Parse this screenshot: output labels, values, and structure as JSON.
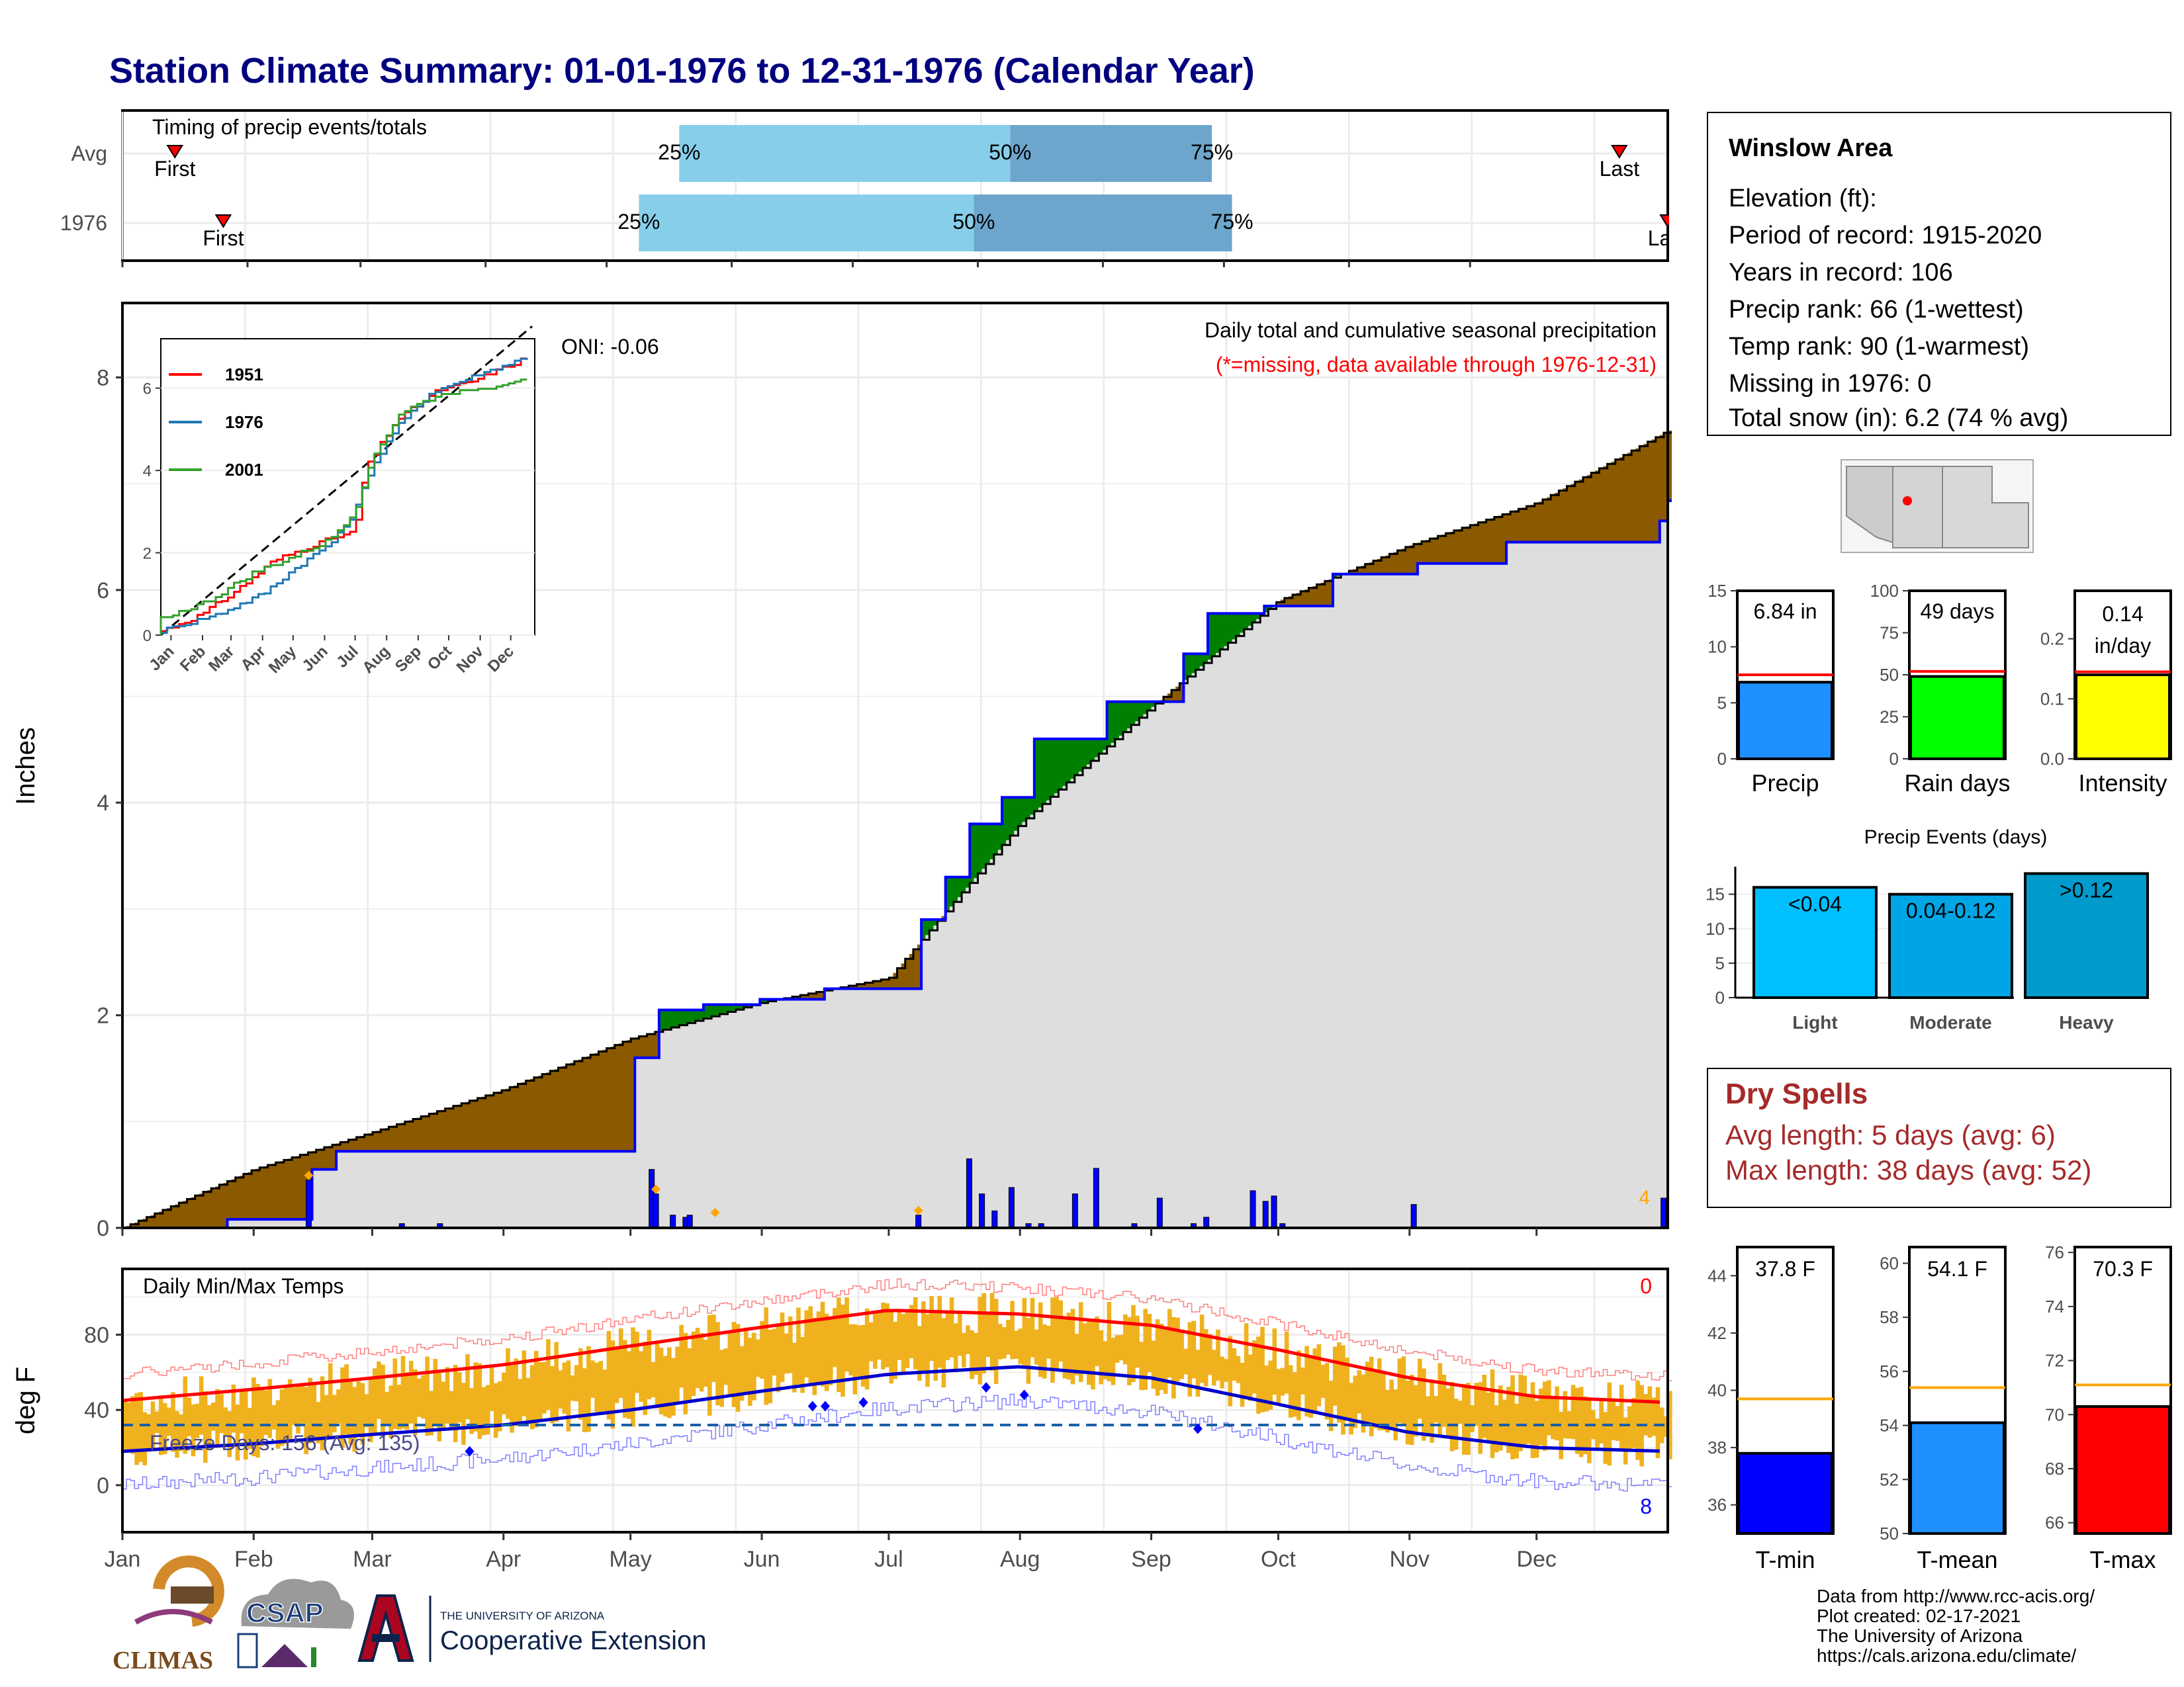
{
  "title": "Station Climate Summary: 01-01-1976 to 12-31-1976 (Calendar Year)",
  "colors": {
    "title": "#000080",
    "cum_fill_above": "#8B5A00",
    "cum_fill_below": "#008000",
    "cum_area": "#dedede",
    "year_line": "#0000ff",
    "q_light": "#87CEEB",
    "q_dark": "#6CA6CD",
    "temp_bar": "#EFB21E",
    "tmax_mean": "#ff0000",
    "tmin_mean": "#0000cc",
    "precip_bar": "#1E90FF",
    "rain_bar": "#00ff00",
    "intensity_bar": "#ffff00",
    "light": "#00BFFF",
    "moderate": "#00A5E5",
    "heavy": "#009ACD",
    "tmin_bar": "#0000ff",
    "tmean_bar": "#1E90FF",
    "tmax_bar": "#ff0000",
    "dry_text": "#A52A2A"
  },
  "timing_panel": {
    "heading": "Timing of precip events/totals",
    "row_labels": [
      "Avg",
      "1976"
    ],
    "avg": {
      "first_label": "First",
      "last_label": "Last",
      "p25": "25%",
      "p50": "50%",
      "p75": "75%",
      "first_day": 13,
      "q25_day": 138,
      "q50_day": 220,
      "q75_day": 270,
      "last_day": 371
    },
    "year": {
      "first_label": "First",
      "last_label": "Last",
      "p25": "25%",
      "p50": "50%",
      "p75": "75%",
      "first_day": 25,
      "q25_day": 128,
      "q50_day": 211,
      "q75_day": 275,
      "last_day": 383
    }
  },
  "precip_panel": {
    "ylabel": "Inches",
    "subtitle": "Daily total and cumulative seasonal precipitation",
    "missing_note": "(*=missing, data available through 1976-12-31)",
    "oni": "ONI: -0.06",
    "right_count": "4",
    "yticks": [
      "0",
      "2",
      "4",
      "6",
      "8"
    ]
  },
  "inset": {
    "legend": [
      "1951",
      "1976",
      "2001"
    ],
    "legend_colors": [
      "#ff0000",
      "#1f77b4",
      "#33a02c"
    ],
    "yticks": [
      "0",
      "2",
      "4",
      "6"
    ],
    "months": [
      "Jan",
      "Feb",
      "Mar",
      "Apr",
      "May",
      "Jun",
      "Jul",
      "Aug",
      "Sep",
      "Oct",
      "Nov",
      "Dec"
    ]
  },
  "temp_panel": {
    "ylabel": "deg F",
    "heading": "Daily Min/Max Temps",
    "freeze_label": "Freeze Days: 156 (Avg: 135)",
    "top_right_count": "0",
    "bottom_right_count": "8",
    "yticks": [
      "0",
      "40",
      "80"
    ]
  },
  "x_months": [
    "Jan",
    "Feb",
    "Mar",
    "Apr",
    "May",
    "Jun",
    "Jul",
    "Aug",
    "Sep",
    "Oct",
    "Nov",
    "Dec"
  ],
  "info_box": {
    "name": "Winslow Area",
    "lines": [
      "Elevation (ft):",
      "Period of record: 1915-2020",
      "Years in record: 106",
      "Precip rank: 66 (1-wettest)",
      "Temp rank: 90 (1-warmest)",
      "Missing in 1976: 0",
      "Total snow (in): 6.2 (74 % avg)"
    ]
  },
  "mini_bars": [
    {
      "label": "Precip",
      "value_text": "6.84 in",
      "value": 6.84,
      "avg": 7.5,
      "ymax": 15,
      "ticks": [
        "0",
        "5",
        "10",
        "15"
      ]
    },
    {
      "label": "Rain days",
      "value_text": "49 days",
      "value": 49,
      "avg": 52,
      "ymax": 100,
      "ticks": [
        "0",
        "25",
        "50",
        "75",
        "100"
      ]
    },
    {
      "label": "Intensity",
      "value_text": "0.14 in/day",
      "value": 0.14,
      "avg": 0.145,
      "ymax": 0.28,
      "ticks": [
        "0.0",
        "0.1",
        "0.2"
      ]
    }
  ],
  "events": {
    "title": "Precip Events (days)",
    "ticks": [
      "0",
      "5",
      "10",
      "15"
    ],
    "bars": [
      {
        "label": "Light",
        "text": "<0.04",
        "value": 16
      },
      {
        "label": "Moderate",
        "text": "0.04-0.12",
        "value": 15
      },
      {
        "label": "Heavy",
        "text": ">0.12",
        "value": 18
      }
    ]
  },
  "dry_spells": {
    "title": "Dry Spells",
    "avg_length": "Avg length: 5 days (avg: 6)",
    "max_length": "Max length: 38 days (avg: 52)"
  },
  "temp_bars": [
    {
      "label": "T-min",
      "value_text": "37.8 F",
      "value": 37.8,
      "avg": 39.7,
      "ymin": 35,
      "ymax": 45,
      "ticks": [
        "36",
        "38",
        "40",
        "42",
        "44"
      ]
    },
    {
      "label": "T-mean",
      "value_text": "54.1 F",
      "value": 54.1,
      "avg": 55.4,
      "ymin": 50,
      "ymax": 60.6,
      "ticks": [
        "50",
        "52",
        "54",
        "56",
        "58",
        "60"
      ]
    },
    {
      "label": "T-max",
      "value_text": "70.3 F",
      "value": 70.3,
      "avg": 71.1,
      "ymin": 65.6,
      "ymax": 76.2,
      "ticks": [
        "66",
        "68",
        "70",
        "72",
        "74",
        "76"
      ]
    }
  ],
  "footer": {
    "lines": [
      "Data from http://www.rcc-acis.org/",
      "Plot created: 02-17-2021",
      "The University of Arizona",
      "https://cals.arizona.edu/climate/"
    ],
    "climas": "CLIMAS",
    "csap": "CSAP",
    "ua_small": "THE UNIVERSITY OF ARIZONA",
    "ua_big": "Cooperative Extension"
  },
  "chart_data": [
    {
      "type": "area",
      "title": "Daily total and cumulative seasonal precipitation",
      "ylabel": "Inches",
      "ylim": [
        0,
        8.2
      ],
      "x_units": "day of year",
      "series": [
        {
          "name": "average cumulative",
          "x": [
            0,
            31,
            59,
            90,
            120,
            151,
            181,
            212,
            243,
            273,
            304,
            334,
            365
          ],
          "values": [
            0,
            0.55,
            0.9,
            1.3,
            1.78,
            2.12,
            2.35,
            3.8,
            4.9,
            5.9,
            6.42,
            6.82,
            7.5
          ]
        },
        {
          "name": "1976 cumulative",
          "x": [
            0,
            24,
            44,
            50,
            66,
            96,
            121,
            126,
            137,
            150,
            165,
            188,
            194,
            200,
            207,
            215,
            232,
            250,
            256,
            269,
            285,
            305,
            326,
            363,
            365
          ],
          "values": [
            0,
            0.08,
            0.55,
            0.72,
            0.72,
            0.72,
            1.6,
            2.05,
            2.1,
            2.15,
            2.25,
            2.9,
            3.3,
            3.8,
            4.05,
            4.6,
            4.95,
            5.4,
            5.78,
            5.85,
            6.15,
            6.25,
            6.45,
            6.65,
            6.84
          ]
        }
      ],
      "daily_1976": {
        "days": [
          44,
          66,
          75,
          125,
          126,
          130,
          133,
          134,
          188,
          200,
          203,
          206,
          210,
          214,
          217,
          225,
          230,
          239,
          245,
          253,
          256,
          267,
          270,
          272,
          274,
          305,
          364
        ],
        "inches": [
          0.45,
          0.04,
          0.04,
          0.55,
          0.32,
          0.12,
          0.1,
          0.12,
          0.12,
          0.65,
          0.32,
          0.16,
          0.38,
          0.04,
          0.04,
          0.32,
          0.56,
          0.04,
          0.28,
          0.04,
          0.1,
          0.35,
          0.25,
          0.3,
          0.04,
          0.22,
          0.28
        ]
      },
      "inset": {
        "series": [
          "1951",
          "1976",
          "2001"
        ],
        "ylim": [
          0,
          7
        ]
      }
    },
    {
      "type": "line",
      "title": "Daily Min/Max Temps",
      "ylabel": "deg F",
      "ylim": [
        -20,
        110
      ],
      "x_units": "day of year",
      "series": [
        {
          "name": "normal max",
          "x": [
            0,
            31,
            59,
            90,
            120,
            151,
            181,
            212,
            243,
            273,
            304,
            334,
            365
          ],
          "values": [
            45,
            51,
            57,
            64,
            74,
            84,
            93,
            91,
            85,
            72,
            57,
            47,
            44
          ]
        },
        {
          "name": "normal min",
          "x": [
            0,
            31,
            59,
            90,
            120,
            151,
            181,
            212,
            243,
            273,
            304,
            334,
            365
          ],
          "values": [
            18,
            22,
            27,
            32,
            40,
            50,
            59,
            63,
            57,
            43,
            28,
            20,
            18
          ]
        }
      ],
      "freeze_line": 32
    }
  ]
}
